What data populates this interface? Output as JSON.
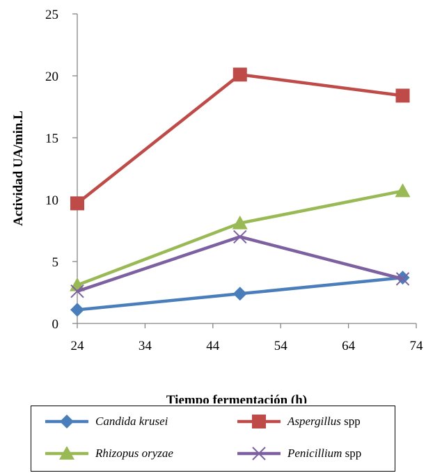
{
  "colors": {
    "candida": "#4a7ebb",
    "aspergillus": "#be4b48",
    "rhizopus": "#98b954",
    "penicillium": "#7d60a0"
  },
  "chart_data": {
    "type": "line",
    "title": "",
    "xlabel": "Tiempo fermentación (h)",
    "ylabel": "Actividad UA/min.L",
    "xlim": [
      24,
      74
    ],
    "ylim": [
      0,
      25
    ],
    "xticks": [
      24,
      34,
      44,
      54,
      64,
      74
    ],
    "yticks": [
      0,
      5,
      10,
      15,
      20,
      25
    ],
    "grid": false,
    "legend_position": "bottom",
    "x": [
      24,
      48,
      72
    ],
    "series": [
      {
        "key": "candida",
        "name": "Candida  krusei",
        "name_italic": "Candida  krusei",
        "name_suffix": "",
        "marker": "diamond",
        "color": "#4a7ebb",
        "values": [
          1.1,
          2.4,
          3.7
        ]
      },
      {
        "key": "aspergillus",
        "name": "Aspergillus spp",
        "name_italic": "Aspergillus",
        "name_suffix": " spp",
        "marker": "square",
        "color": "#be4b48",
        "values": [
          9.7,
          20.1,
          18.4
        ]
      },
      {
        "key": "rhizopus",
        "name": "Rhizopus oryzae",
        "name_italic": "Rhizopus oryzae",
        "name_suffix": "",
        "marker": "triangle",
        "color": "#98b954",
        "values": [
          3.1,
          8.1,
          10.7
        ]
      },
      {
        "key": "penicillium",
        "name": "Penicillium spp",
        "name_italic": "Penicillium",
        "name_suffix": " spp",
        "marker": "x",
        "color": "#7d60a0",
        "values": [
          2.6,
          7.0,
          3.6
        ]
      }
    ]
  }
}
